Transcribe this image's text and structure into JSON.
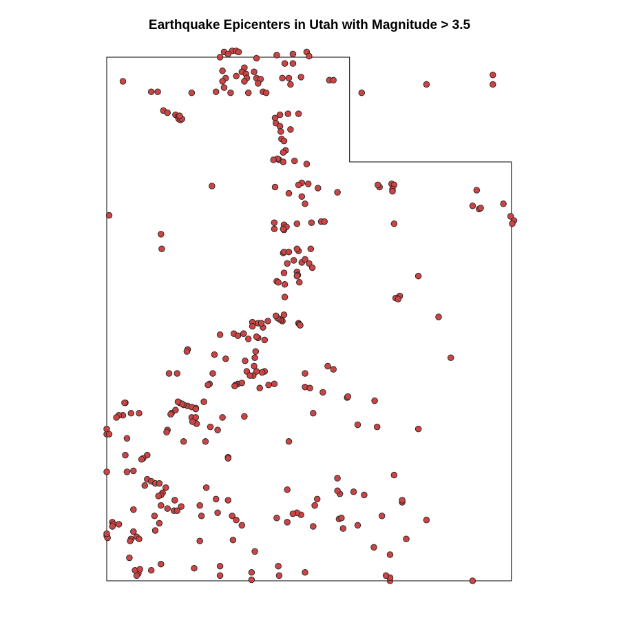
{
  "title": "Earthquake Epicenters in Utah with Magnitude > 3.5",
  "colors": {
    "point_fill": "#cc4444",
    "point_stroke": "#222222",
    "outline": "#000000",
    "background": "#ffffff"
  },
  "chart_data": {
    "type": "scatter",
    "title": "Earthquake Epicenters in Utah with Magnitude > 3.5",
    "xlabel": "",
    "ylabel": "",
    "xlim": [
      -114.05,
      -109.04
    ],
    "ylim": [
      37.0,
      42.0
    ],
    "grid": false,
    "legend": "none",
    "state_outline": [
      [
        -114.05,
        42.0
      ],
      [
        -111.05,
        42.0
      ],
      [
        -111.05,
        41.0
      ],
      [
        -109.05,
        41.0
      ],
      [
        -109.05,
        37.0
      ],
      [
        -114.05,
        37.0
      ]
    ],
    "epicenters": [
      [
        -112.6,
        42.05
      ],
      [
        -112.5,
        42.06
      ],
      [
        -112.45,
        42.06
      ],
      [
        -112.42,
        42.05
      ],
      [
        -112.55,
        42.03
      ],
      [
        -112.65,
        42.0
      ],
      [
        -111.95,
        42.02
      ],
      [
        -111.75,
        42.03
      ],
      [
        -111.58,
        42.05
      ],
      [
        -111.55,
        42.01
      ],
      [
        -111.85,
        41.94
      ],
      [
        -111.75,
        41.94
      ],
      [
        -112.2,
        41.99
      ],
      [
        -112.35,
        41.9
      ],
      [
        -112.38,
        41.86
      ],
      [
        -112.33,
        41.84
      ],
      [
        -112.23,
        41.86
      ],
      [
        -112.32,
        41.8
      ],
      [
        -112.62,
        41.87
      ],
      [
        -112.58,
        41.8
      ],
      [
        -112.45,
        41.82
      ],
      [
        -112.2,
        41.8
      ],
      [
        -112.15,
        41.79
      ],
      [
        -111.88,
        41.8
      ],
      [
        -111.8,
        41.8
      ],
      [
        -111.65,
        41.81
      ],
      [
        -111.3,
        41.78
      ],
      [
        -111.25,
        41.78
      ],
      [
        -113.85,
        41.77
      ],
      [
        -112.62,
        41.77
      ],
      [
        -112.35,
        41.77
      ],
      [
        -112.6,
        41.71
      ],
      [
        -112.18,
        41.75
      ],
      [
        -111.78,
        41.74
      ],
      [
        -113.5,
        41.67
      ],
      [
        -113.42,
        41.67
      ],
      [
        -113.0,
        41.66
      ],
      [
        -112.7,
        41.67
      ],
      [
        -112.52,
        41.66
      ],
      [
        -112.3,
        41.66
      ],
      [
        -112.12,
        41.67
      ],
      [
        -112.08,
        41.66
      ],
      [
        -110.1,
        41.74
      ],
      [
        -109.28,
        41.83
      ],
      [
        -109.28,
        41.74
      ],
      [
        -110.9,
        41.66
      ],
      [
        -113.35,
        41.49
      ],
      [
        -113.3,
        41.47
      ],
      [
        -113.2,
        41.45
      ],
      [
        -113.17,
        41.43
      ],
      [
        -113.16,
        41.41
      ],
      [
        -113.14,
        41.4
      ],
      [
        -113.12,
        41.41
      ],
      [
        -113.15,
        41.44
      ],
      [
        -111.91,
        41.45
      ],
      [
        -111.81,
        41.46
      ],
      [
        -111.68,
        41.46
      ],
      [
        -111.97,
        41.42
      ],
      [
        -111.96,
        41.37
      ],
      [
        -111.91,
        41.34
      ],
      [
        -111.78,
        41.31
      ],
      [
        -111.9,
        41.29
      ],
      [
        -111.89,
        41.22
      ],
      [
        -111.86,
        41.2
      ],
      [
        -111.84,
        41.11
      ],
      [
        -111.87,
        41.09
      ],
      [
        -111.92,
        41.02
      ],
      [
        -111.94,
        41.03
      ],
      [
        -111.99,
        41.02
      ],
      [
        -111.87,
        41.0
      ],
      [
        -111.73,
        41.01
      ],
      [
        -111.58,
        40.98
      ],
      [
        -112.75,
        40.77
      ],
      [
        -111.97,
        40.76
      ],
      [
        -111.56,
        40.79
      ],
      [
        -111.64,
        40.8
      ],
      [
        -111.68,
        40.78
      ],
      [
        -111.44,
        40.75
      ],
      [
        -111.8,
        40.7
      ],
      [
        -111.64,
        40.67
      ],
      [
        -111.6,
        40.6
      ],
      [
        -111.2,
        40.71
      ],
      [
        -110.68,
        40.76
      ],
      [
        -110.7,
        40.78
      ],
      [
        -110.53,
        40.79
      ],
      [
        -110.5,
        40.78
      ],
      [
        -110.52,
        40.74
      ],
      [
        -110.52,
        40.72
      ],
      [
        -109.48,
        40.73
      ],
      [
        -109.53,
        40.58
      ],
      [
        -109.45,
        40.55
      ],
      [
        -109.43,
        40.56
      ],
      [
        -109.15,
        40.6
      ],
      [
        -109.06,
        40.48
      ],
      [
        -109.02,
        40.44
      ],
      [
        -109.04,
        40.41
      ],
      [
        -114.02,
        40.49
      ],
      [
        -113.38,
        40.31
      ],
      [
        -113.37,
        40.17
      ],
      [
        -111.98,
        40.42
      ],
      [
        -111.86,
        40.4
      ],
      [
        -111.7,
        40.41
      ],
      [
        -111.52,
        40.42
      ],
      [
        -111.4,
        40.43
      ],
      [
        -111.36,
        40.43
      ],
      [
        -110.5,
        40.41
      ],
      [
        -111.98,
        40.36
      ],
      [
        -111.86,
        40.35
      ],
      [
        -111.83,
        40.38
      ],
      [
        -111.87,
        40.36
      ],
      [
        -111.87,
        40.13
      ],
      [
        -111.86,
        40.14
      ],
      [
        -111.8,
        40.14
      ],
      [
        -111.68,
        40.15
      ],
      [
        -111.7,
        40.17
      ],
      [
        -111.53,
        40.17
      ],
      [
        -111.74,
        40.06
      ],
      [
        -111.82,
        40.03
      ],
      [
        -111.64,
        40.04
      ],
      [
        -111.6,
        40.07
      ],
      [
        -111.55,
        40.03
      ],
      [
        -111.51,
        39.99
      ],
      [
        -111.7,
        39.95
      ],
      [
        -111.86,
        39.94
      ],
      [
        -111.69,
        39.92
      ],
      [
        -111.7,
        39.91
      ],
      [
        -111.95,
        39.86
      ],
      [
        -111.93,
        39.85
      ],
      [
        -111.85,
        39.83
      ],
      [
        -111.67,
        39.85
      ],
      [
        -110.43,
        39.72
      ],
      [
        -110.47,
        39.7
      ],
      [
        -110.48,
        39.7
      ],
      [
        -110.45,
        39.69
      ],
      [
        -110.2,
        39.91
      ],
      [
        -109.95,
        39.52
      ],
      [
        -111.85,
        39.71
      ],
      [
        -111.86,
        39.54
      ],
      [
        -112.06,
        39.48
      ],
      [
        -112.25,
        39.47
      ],
      [
        -112.18,
        39.46
      ],
      [
        -112.12,
        39.42
      ],
      [
        -112.25,
        39.43
      ],
      [
        -112.36,
        39.36
      ],
      [
        -112.14,
        39.46
      ],
      [
        -111.88,
        39.48
      ],
      [
        -111.9,
        39.49
      ],
      [
        -111.92,
        39.5
      ],
      [
        -111.94,
        39.51
      ],
      [
        -111.96,
        39.53
      ],
      [
        -111.68,
        39.46
      ],
      [
        -111.67,
        39.45
      ],
      [
        -111.66,
        39.44
      ],
      [
        -112.36,
        39.36
      ],
      [
        -112.48,
        39.36
      ],
      [
        -112.65,
        39.35
      ],
      [
        -112.43,
        39.34
      ],
      [
        -112.18,
        39.32
      ],
      [
        -112.3,
        39.31
      ],
      [
        -112.1,
        39.3
      ],
      [
        -112.2,
        39.33
      ],
      [
        -113.05,
        39.21
      ],
      [
        -113.06,
        39.19
      ],
      [
        -112.72,
        39.16
      ],
      [
        -112.21,
        39.19
      ],
      [
        -112.22,
        39.13
      ],
      [
        -112.23,
        39.05
      ],
      [
        -112.34,
        39.1
      ],
      [
        -112.58,
        39.12
      ],
      [
        -112.74,
        38.98
      ],
      [
        -112.32,
        39.0
      ],
      [
        -112.2,
        39.0
      ],
      [
        -112.1,
        39.0
      ],
      [
        -112.24,
        38.96
      ],
      [
        -112.28,
        38.96
      ],
      [
        -112.13,
        38.99
      ],
      [
        -111.6,
        38.98
      ],
      [
        -111.32,
        39.05
      ],
      [
        -111.25,
        39.02
      ],
      [
        -109.8,
        39.13
      ],
      [
        -113.18,
        38.98
      ],
      [
        -113.28,
        38.98
      ],
      [
        -112.78,
        38.88
      ],
      [
        -112.8,
        38.87
      ],
      [
        -112.43,
        38.88
      ],
      [
        -112.46,
        38.87
      ],
      [
        -112.47,
        38.86
      ],
      [
        -112.38,
        38.89
      ],
      [
        -111.98,
        38.88
      ],
      [
        -112.05,
        38.87
      ],
      [
        -112.16,
        38.84
      ],
      [
        -111.6,
        38.85
      ],
      [
        -111.54,
        38.84
      ],
      [
        -111.38,
        38.8
      ],
      [
        -111.08,
        38.75
      ],
      [
        -111.07,
        38.76
      ],
      [
        -110.74,
        38.72
      ],
      [
        -113.82,
        38.7
      ],
      [
        -113.83,
        38.7
      ],
      [
        -113.05,
        38.67
      ],
      [
        -113.1,
        38.68
      ],
      [
        -113.15,
        38.7
      ],
      [
        -113.12,
        38.69
      ],
      [
        -113.17,
        38.71
      ],
      [
        -112.85,
        38.71
      ],
      [
        -112.95,
        38.65
      ],
      [
        -113.0,
        38.66
      ],
      [
        -112.95,
        38.64
      ],
      [
        -113.2,
        38.63
      ],
      [
        -113.25,
        38.6
      ],
      [
        -113.26,
        38.59
      ],
      [
        -113.65,
        38.6
      ],
      [
        -113.75,
        38.6
      ],
      [
        -113.85,
        38.58
      ],
      [
        -113.9,
        38.58
      ],
      [
        -113.93,
        38.56
      ],
      [
        -113.0,
        38.56
      ],
      [
        -112.95,
        38.56
      ],
      [
        -112.62,
        38.56
      ],
      [
        -112.35,
        38.57
      ],
      [
        -111.5,
        38.6
      ],
      [
        -112.94,
        38.5
      ],
      [
        -112.99,
        38.52
      ],
      [
        -112.77,
        38.47
      ],
      [
        -113.3,
        38.44
      ],
      [
        -112.68,
        38.44
      ],
      [
        -114.05,
        38.45
      ],
      [
        -114.05,
        38.4
      ],
      [
        -114.02,
        38.4
      ],
      [
        -113.8,
        38.36
      ],
      [
        -113.31,
        38.42
      ],
      [
        -113.1,
        38.33
      ],
      [
        -112.83,
        38.33
      ],
      [
        -110.95,
        38.49
      ],
      [
        -110.71,
        38.47
      ],
      [
        -113.82,
        38.2
      ],
      [
        -113.55,
        38.2
      ],
      [
        -113.6,
        38.17
      ],
      [
        -113.62,
        38.16
      ],
      [
        -112.55,
        38.18
      ],
      [
        -112.55,
        38.17
      ],
      [
        -113.72,
        38.05
      ],
      [
        -113.8,
        38.04
      ],
      [
        -114.05,
        38.04
      ],
      [
        -113.55,
        37.97
      ],
      [
        -113.5,
        37.95
      ],
      [
        -113.45,
        37.93
      ],
      [
        -113.58,
        37.91
      ],
      [
        -113.4,
        37.93
      ],
      [
        -113.32,
        37.89
      ],
      [
        -113.36,
        37.84
      ],
      [
        -113.38,
        37.82
      ],
      [
        -113.41,
        37.81
      ],
      [
        -113.21,
        37.77
      ],
      [
        -113.38,
        37.72
      ],
      [
        -113.3,
        37.69
      ],
      [
        -113.13,
        37.71
      ],
      [
        -112.9,
        37.72
      ],
      [
        -112.7,
        37.78
      ],
      [
        -112.55,
        37.77
      ],
      [
        -112.82,
        37.89
      ],
      [
        -113.72,
        37.68
      ],
      [
        -113.46,
        37.62
      ],
      [
        -113.22,
        37.67
      ],
      [
        -113.18,
        37.67
      ],
      [
        -112.88,
        37.62
      ],
      [
        -112.68,
        37.65
      ],
      [
        -112.5,
        37.62
      ],
      [
        -112.45,
        37.58
      ],
      [
        -113.4,
        37.55
      ],
      [
        -113.98,
        37.56
      ],
      [
        -113.97,
        37.54
      ],
      [
        -113.9,
        37.54
      ],
      [
        -113.98,
        37.52
      ],
      [
        -113.72,
        37.47
      ],
      [
        -113.45,
        37.48
      ],
      [
        -113.68,
        37.42
      ],
      [
        -113.75,
        37.4
      ],
      [
        -113.76,
        37.38
      ],
      [
        -112.9,
        37.38
      ],
      [
        -112.49,
        37.39
      ],
      [
        -114.05,
        37.43
      ],
      [
        -114.04,
        37.41
      ],
      [
        -114.05,
        37.45
      ],
      [
        -113.65,
        37.4
      ],
      [
        -112.38,
        37.53
      ],
      [
        -111.95,
        37.6
      ],
      [
        -111.82,
        37.56
      ],
      [
        -111.65,
        37.63
      ],
      [
        -111.48,
        37.72
      ],
      [
        -111.18,
        37.59
      ],
      [
        -111.15,
        37.6
      ],
      [
        -110.65,
        37.62
      ],
      [
        -110.95,
        37.53
      ],
      [
        -111.13,
        37.5
      ],
      [
        -111.5,
        37.52
      ],
      [
        -111.0,
        37.85
      ],
      [
        -111.2,
        37.98
      ],
      [
        -111.17,
        37.83
      ],
      [
        -111.45,
        37.78
      ],
      [
        -111.7,
        37.65
      ],
      [
        -111.8,
        38.33
      ],
      [
        -110.2,
        38.45
      ],
      [
        -110.5,
        38.01
      ],
      [
        -110.4,
        37.75
      ],
      [
        -110.4,
        37.77
      ],
      [
        -110.87,
        37.82
      ],
      [
        -111.2,
        37.86
      ],
      [
        -111.75,
        37.64
      ],
      [
        -111.82,
        37.87
      ],
      [
        -113.77,
        37.22
      ],
      [
        -113.5,
        37.1
      ],
      [
        -113.38,
        37.16
      ],
      [
        -113.66,
        37.07
      ],
      [
        -113.68,
        37.05
      ],
      [
        -113.7,
        37.1
      ],
      [
        -113.64,
        37.11
      ],
      [
        -112.97,
        37.12
      ],
      [
        -112.65,
        37.14
      ],
      [
        -112.65,
        37.05
      ],
      [
        -112.26,
        37.01
      ],
      [
        -112.26,
        37.08
      ],
      [
        -112.22,
        37.28
      ],
      [
        -111.92,
        37.05
      ],
      [
        -111.93,
        37.14
      ],
      [
        -111.6,
        37.08
      ],
      [
        -110.55,
        37.25
      ],
      [
        -110.55,
        37.0
      ],
      [
        -109.53,
        37.0
      ],
      [
        -110.55,
        37.03
      ],
      [
        -110.6,
        37.05
      ],
      [
        -110.75,
        37.32
      ],
      [
        -110.35,
        37.4
      ],
      [
        -110.1,
        37.58
      ]
    ]
  }
}
